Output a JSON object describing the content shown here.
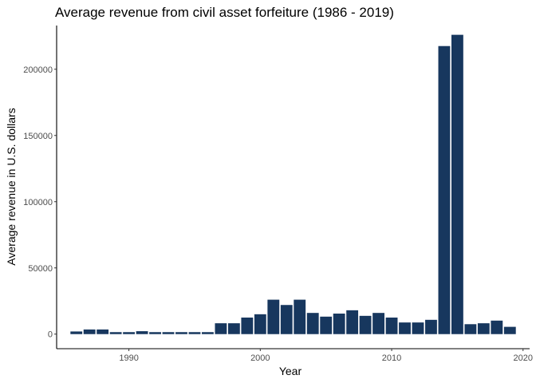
{
  "chart_data": {
    "type": "bar",
    "title": "Average revenue from civil asset forfeiture (1986 - 2019)",
    "xlabel": "Year",
    "ylabel": "Average revenue in U.S. dollars",
    "bar_color": "#17375e",
    "background": "#ffffff",
    "grid": false,
    "legend": "none",
    "xlim": [
      1984.5,
      2020.5
    ],
    "ylim": [
      -11000,
      233000
    ],
    "x_ticks": [
      1990,
      2000,
      2010,
      2020
    ],
    "x_tick_labels": [
      "1990",
      "2000",
      "2010",
      "2020"
    ],
    "y_ticks": [
      0,
      50000,
      100000,
      150000,
      200000
    ],
    "y_tick_labels": [
      "0",
      "50000",
      "100000",
      "150000",
      "200000"
    ],
    "x": [
      1986,
      1987,
      1988,
      1989,
      1990,
      1991,
      1992,
      1993,
      1994,
      1995,
      1996,
      1997,
      1998,
      1999,
      2000,
      2001,
      2002,
      2003,
      2004,
      2005,
      2006,
      2007,
      2008,
      2009,
      2010,
      2011,
      2012,
      2013,
      2014,
      2015,
      2016,
      2017,
      2018,
      2019
    ],
    "values": [
      2000,
      3500,
      3500,
      1500,
      1500,
      2200,
      1500,
      1500,
      1500,
      1500,
      1500,
      8200,
      8200,
      12500,
      15000,
      26000,
      22000,
      26000,
      16000,
      13200,
      15500,
      18000,
      13800,
      16000,
      12500,
      8800,
      8800,
      10800,
      217500,
      226000,
      7500,
      8200,
      10200,
      5500
    ]
  }
}
